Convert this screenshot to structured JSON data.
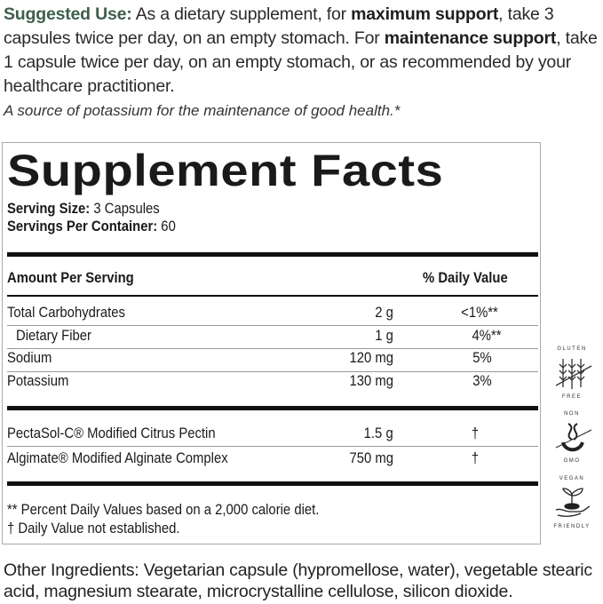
{
  "suggested_use": {
    "label": "Suggested Use:",
    "t1": " As a dietary supplement, for ",
    "b1": "maximum support",
    "t2": ", take 3 capsules twice per day, on an empty stomach. For ",
    "b2": "maintenance support",
    "t3": ", take 1 capsule twice per day, on an empty stomach, or as recommended by your healthcare practitioner."
  },
  "claim": "A source of potassium for the maintenance of good health.*",
  "facts": {
    "title": "Supplement Facts",
    "serving_size_label": "Serving Size:",
    "serving_size": " 3 Capsules",
    "servings_label": "Servings Per Container:",
    "servings": " 60",
    "header_amount": "Amount Per Serving",
    "header_dv": "% Daily Value",
    "nutrients": [
      {
        "name": "Total Carbohydrates",
        "amount": "2 g",
        "dv": "<1%**"
      },
      {
        "name": "Dietary Fiber",
        "amount": "1 g",
        "dv": "4%**"
      },
      {
        "name": "Sodium",
        "amount": "120 mg",
        "dv": "5%"
      },
      {
        "name": "Potassium",
        "amount": "130 mg",
        "dv": "3%"
      }
    ],
    "ingredients": [
      {
        "name": "PectaSol-C® Modified Citrus Pectin",
        "amount": "1.5 g",
        "dv": "†"
      },
      {
        "name": "Algimate® Modified Alginate Complex",
        "amount": "750 mg",
        "dv": "†"
      }
    ],
    "footnote1": "** Percent Daily Values based on a 2,000 calorie diet.",
    "footnote2": "† Daily Value not established."
  },
  "other_ingredients": {
    "label": "Other Ingredients:",
    "text": " Vegetarian capsule (hypromellose, water), vegetable stearic acid, magnesium stearate, microcrystalline cellulose, silicon dioxide."
  },
  "badges": [
    {
      "icon": "wheat-crossed-icon",
      "top": "GLUTEN",
      "bottom": "FREE"
    },
    {
      "icon": "dna-crossed-icon",
      "top": "NON",
      "bottom": "GMO"
    },
    {
      "icon": "hand-sprout-icon",
      "top": "VEGAN",
      "bottom": "FRIENDLY"
    }
  ],
  "colors": {
    "accent": "#3e5e4c",
    "rule": "#111111"
  }
}
